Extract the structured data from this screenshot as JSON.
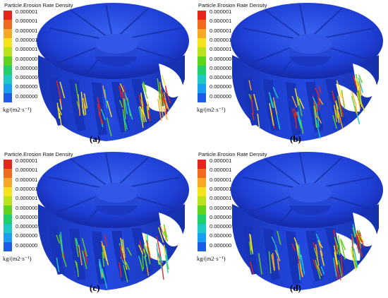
{
  "legend": {
    "title": "Particle.Erosion Rate Density",
    "ticks": [
      "0.000001",
      "0.000001",
      "0.000001",
      "0.000001",
      "0.000001",
      "0.000000",
      "0.000000",
      "0.000000",
      "0.000000",
      "0.000000"
    ],
    "unit": "kg/(m2·s⁻¹)",
    "colors": [
      "#e8251b",
      "#f26a1d",
      "#f9a825",
      "#f5e21b",
      "#b9e21a",
      "#5fd31c",
      "#20cf6c",
      "#1dc9c5",
      "#1a9ff0",
      "#1b5de8"
    ]
  },
  "runner_color": "#1f3fd6",
  "panels": [
    {
      "label": "(a)"
    },
    {
      "label": "(b)"
    },
    {
      "label": "(c)"
    },
    {
      "label": "(d)"
    }
  ]
}
